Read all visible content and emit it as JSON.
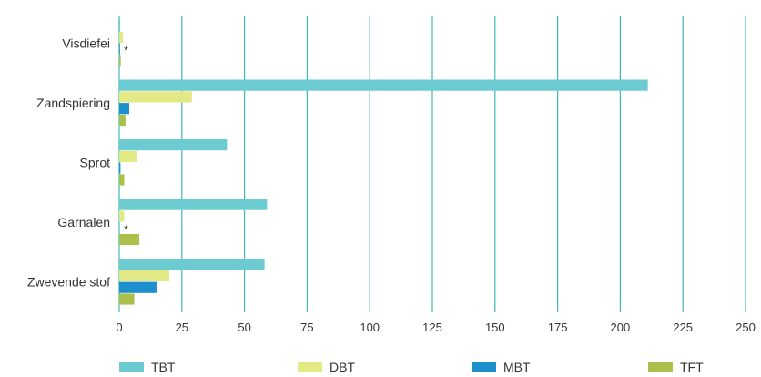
{
  "chart_data": {
    "type": "bar",
    "orientation": "horizontal",
    "title": "",
    "xlabel": "",
    "ylabel": "",
    "categories": [
      "Visdiefei",
      "Zandspiering",
      "Sprot",
      "Garnalen",
      "Zwevende stof"
    ],
    "series": [
      {
        "name": "TBT",
        "color": "#6ccbd1",
        "values": [
          0.4,
          211,
          43,
          59,
          58
        ]
      },
      {
        "name": "DBT",
        "color": "#e3ea85",
        "values": [
          1.5,
          29,
          7,
          2,
          20
        ]
      },
      {
        "name": "MBT",
        "color": "#1e8fcd",
        "values": [
          0.3,
          4,
          0.5,
          0,
          15
        ]
      },
      {
        "name": "TFT",
        "color": "#aac04a",
        "values": [
          0.6,
          2.5,
          2,
          8,
          6
        ]
      }
    ],
    "annotations": [
      {
        "category": "Visdiefei",
        "series": "MBT",
        "text": "*"
      },
      {
        "category": "Garnalen",
        "series": "MBT",
        "text": "*"
      }
    ],
    "xlim": [
      0,
      250
    ],
    "xticks": [
      "0",
      "25",
      "50",
      "75",
      "100",
      "125",
      "150",
      "175",
      "200",
      "225",
      "250"
    ],
    "grid": "vertical",
    "legend_position": "bottom",
    "gridline_color": "#3fb7b2"
  }
}
